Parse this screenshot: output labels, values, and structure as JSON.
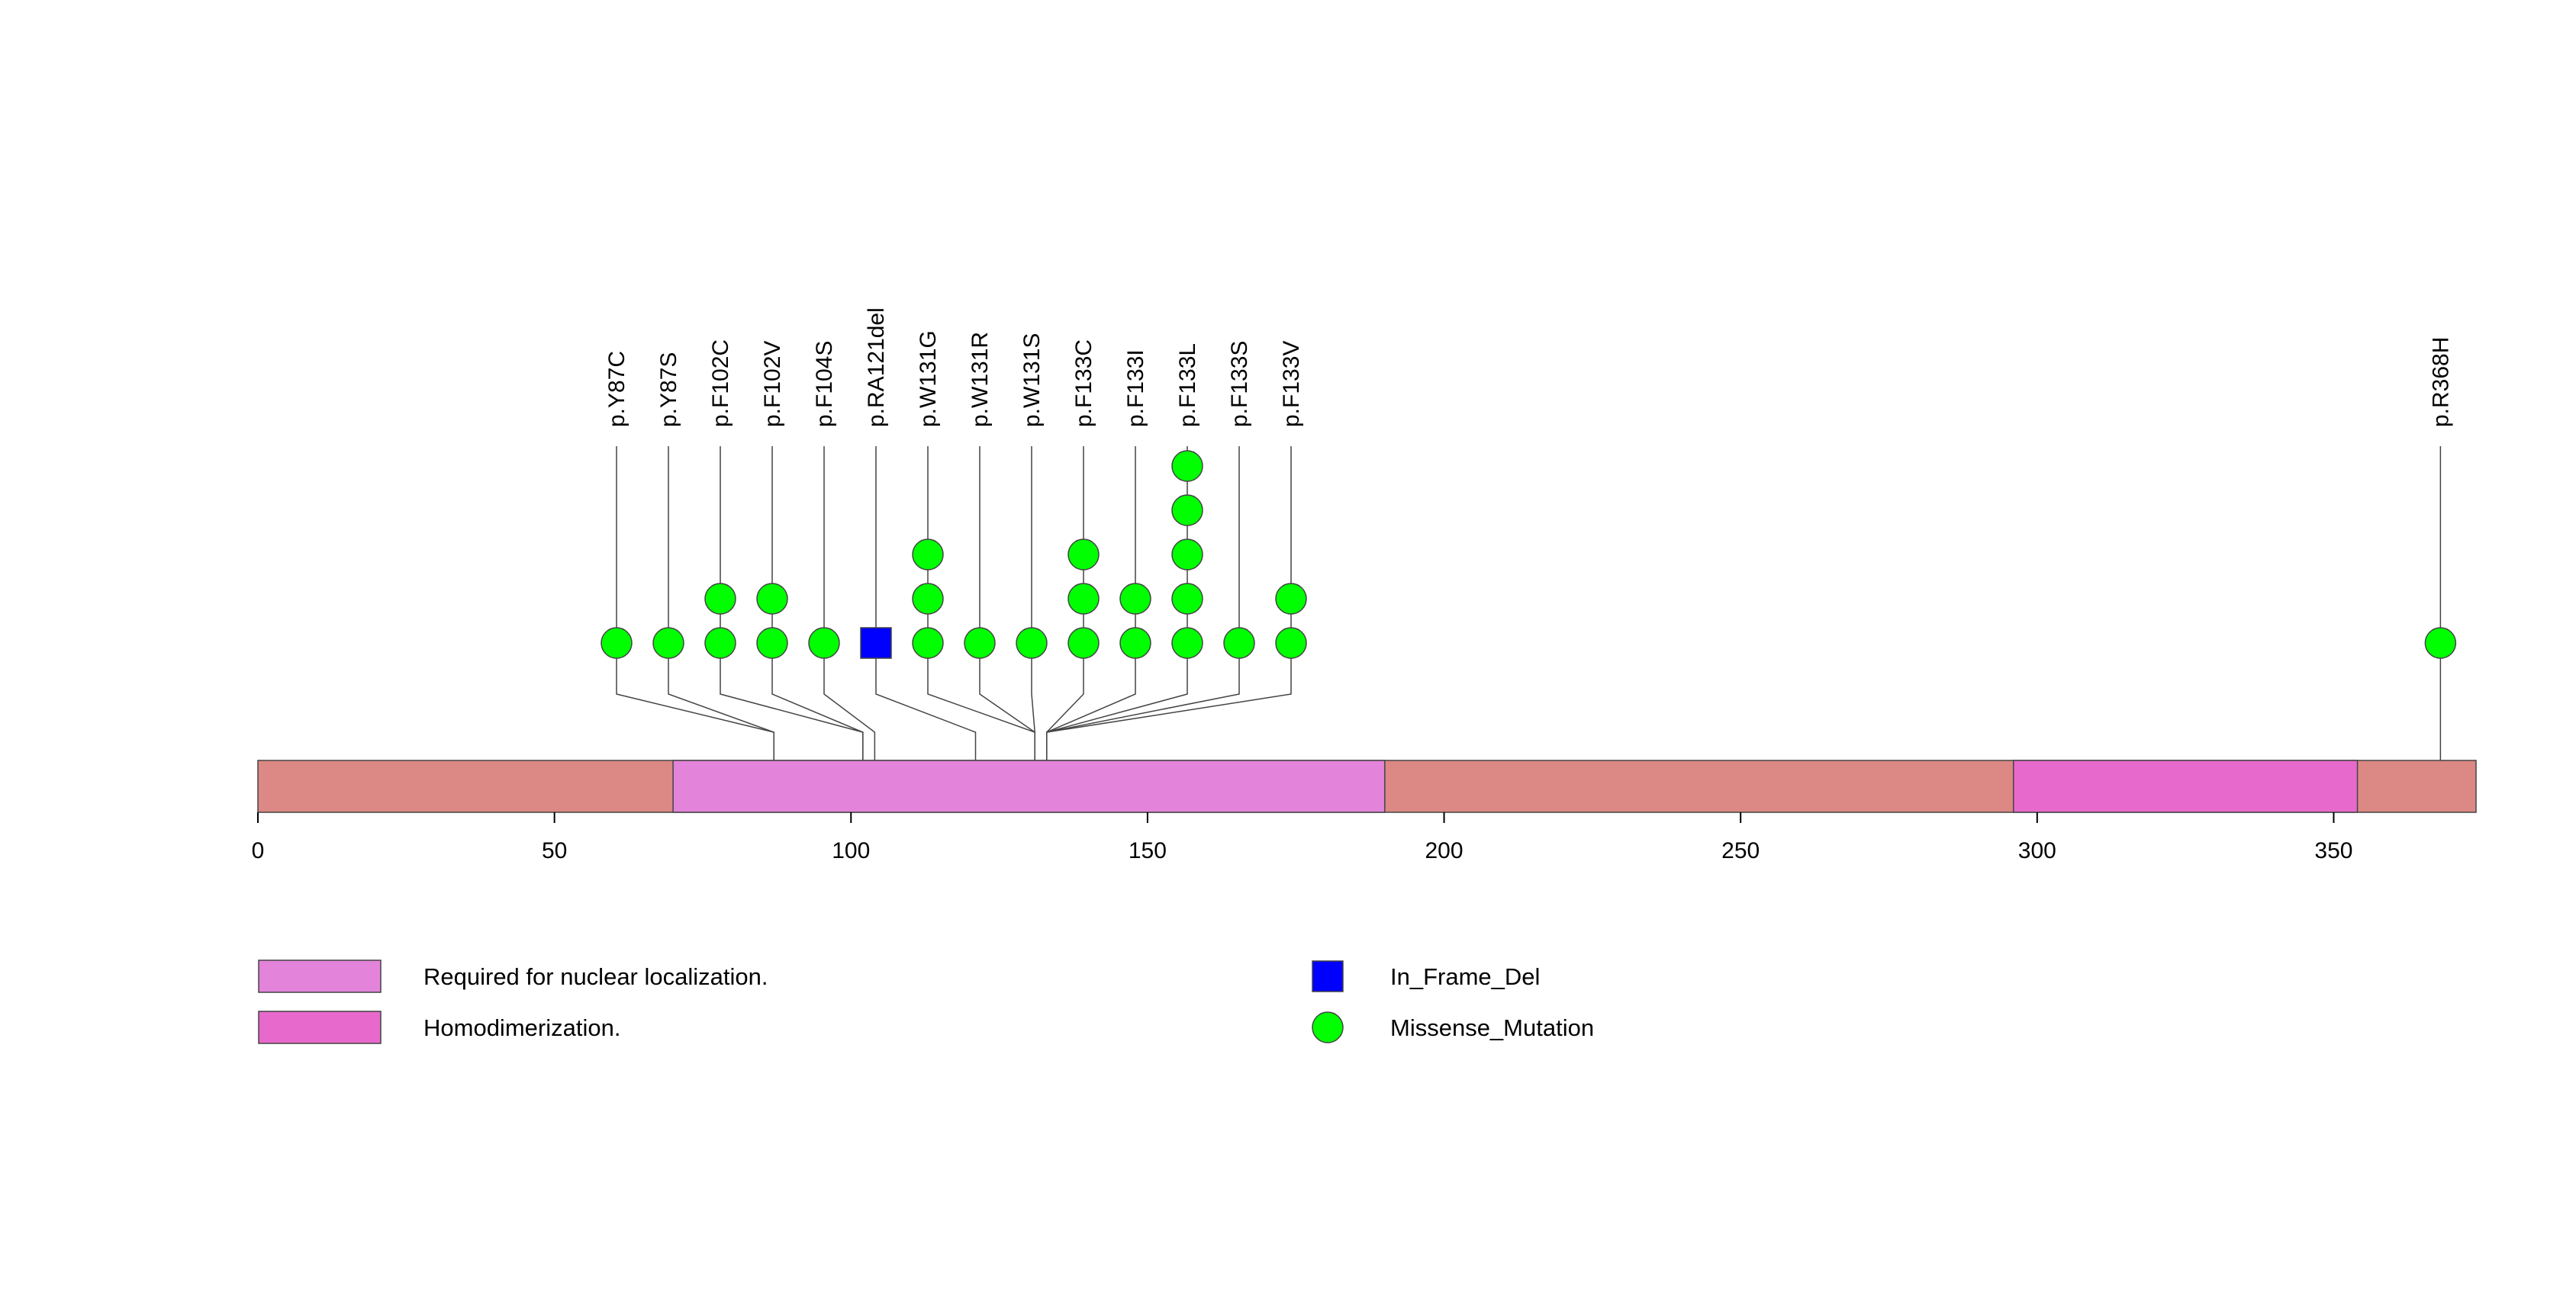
{
  "chart_data": {
    "type": "lollipop",
    "title": "",
    "protein_length": 374,
    "x_ticks": [
      0,
      50,
      100,
      150,
      200,
      250,
      300,
      350
    ],
    "x_tick_labels": [
      "0",
      "50",
      "100",
      "150",
      "200",
      "250",
      "300",
      "350"
    ],
    "xlim": [
      0,
      374
    ],
    "colors": {
      "backbone": "#dc8884",
      "nuclear_localization": "#e383da",
      "homodimerization": "#e869cc",
      "in_frame_del": "#0000ff",
      "missense": "#00ff00",
      "outline": "#444444"
    },
    "domains": [
      {
        "name": "Required for nuclear localization.",
        "start": 70,
        "end": 190,
        "color_key": "nuclear_localization"
      },
      {
        "name": "Homodimerization.",
        "start": 296,
        "end": 354,
        "color_key": "homodimerization"
      }
    ],
    "mutations": [
      {
        "label": "p.Y87C",
        "position": 87,
        "count": 1,
        "type": "Missense_Mutation"
      },
      {
        "label": "p.Y87S",
        "position": 87,
        "count": 1,
        "type": "Missense_Mutation"
      },
      {
        "label": "p.F102C",
        "position": 102,
        "count": 2,
        "type": "Missense_Mutation"
      },
      {
        "label": "p.F102V",
        "position": 102,
        "count": 2,
        "type": "Missense_Mutation"
      },
      {
        "label": "p.F104S",
        "position": 104,
        "count": 1,
        "type": "Missense_Mutation"
      },
      {
        "label": "p.RA121del",
        "position": 121,
        "count": 1,
        "type": "In_Frame_Del"
      },
      {
        "label": "p.W131G",
        "position": 131,
        "count": 3,
        "type": "Missense_Mutation"
      },
      {
        "label": "p.W131R",
        "position": 131,
        "count": 1,
        "type": "Missense_Mutation"
      },
      {
        "label": "p.W131S",
        "position": 131,
        "count": 1,
        "type": "Missense_Mutation"
      },
      {
        "label": "p.F133C",
        "position": 133,
        "count": 3,
        "type": "Missense_Mutation"
      },
      {
        "label": "p.F133I",
        "position": 133,
        "count": 2,
        "type": "Missense_Mutation"
      },
      {
        "label": "p.F133L",
        "position": 133,
        "count": 5,
        "type": "Missense_Mutation"
      },
      {
        "label": "p.F133S",
        "position": 133,
        "count": 1,
        "type": "Missense_Mutation"
      },
      {
        "label": "p.F133V",
        "position": 133,
        "count": 2,
        "type": "Missense_Mutation"
      },
      {
        "label": "p.R368H",
        "position": 368,
        "count": 1,
        "type": "Missense_Mutation"
      }
    ],
    "legend": {
      "domains": [
        {
          "label": "Required for nuclear localization.",
          "color_key": "nuclear_localization"
        },
        {
          "label": "Homodimerization.",
          "color_key": "homodimerization"
        }
      ],
      "mutation_types": [
        {
          "label": "In_Frame_Del",
          "shape": "square",
          "color_key": "in_frame_del"
        },
        {
          "label": "Missense_Mutation",
          "shape": "circle",
          "color_key": "missense"
        }
      ]
    }
  }
}
